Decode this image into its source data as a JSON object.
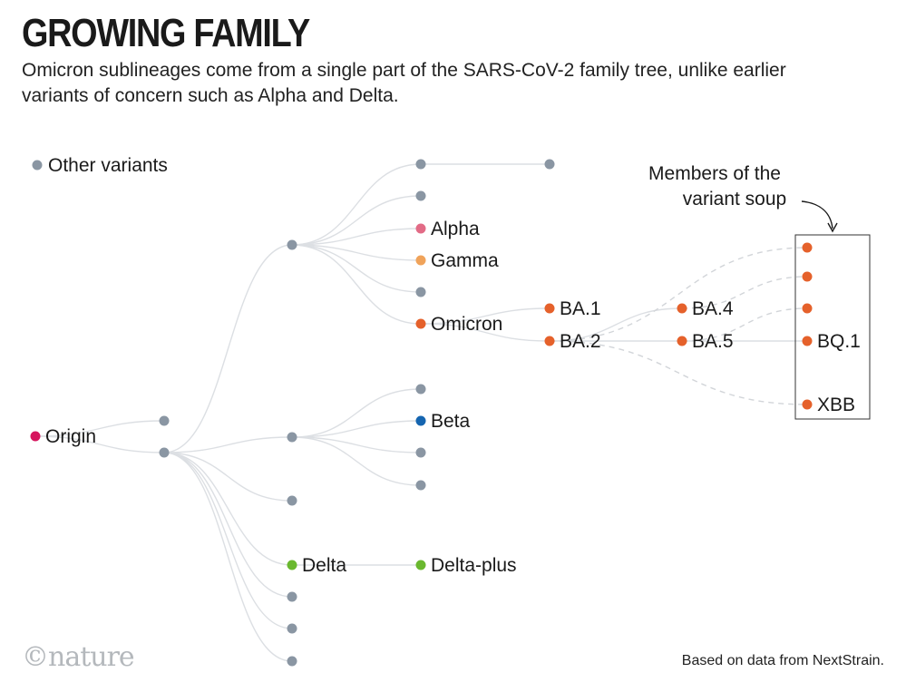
{
  "header": {
    "title": "GROWING FAMILY",
    "subtitle": "Omicron sublineages come from a single part of the SARS-CoV-2 family tree, unlike earlier variants of concern such as Alpha and Delta."
  },
  "legend": {
    "label": "Other variants",
    "color": "#8a96a3"
  },
  "annotation": {
    "line1": "Members of the",
    "line2": "variant soup"
  },
  "colors": {
    "other": "#8a96a3",
    "origin": "#d6155e",
    "alpha": "#e26b86",
    "gamma": "#f0a35a",
    "omicron": "#e5612b",
    "beta": "#1565b0",
    "delta": "#6ab82f",
    "edge": "#dcdfe3",
    "dashed": "#d2d5d9"
  },
  "nodes": [
    {
      "id": "origin",
      "label": "Origin",
      "color_key": "origin"
    },
    {
      "id": "n1",
      "label": "",
      "color_key": "other"
    },
    {
      "id": "n2",
      "label": "",
      "color_key": "other"
    },
    {
      "id": "n3",
      "label": "",
      "color_key": "other"
    },
    {
      "id": "n4",
      "label": "",
      "color_key": "other"
    },
    {
      "id": "n5",
      "label": "",
      "color_key": "other"
    },
    {
      "id": "delta",
      "label": "Delta",
      "color_key": "delta"
    },
    {
      "id": "n6",
      "label": "",
      "color_key": "other"
    },
    {
      "id": "n7",
      "label": "",
      "color_key": "other"
    },
    {
      "id": "n8",
      "label": "",
      "color_key": "other"
    },
    {
      "id": "n9",
      "label": "",
      "color_key": "other"
    },
    {
      "id": "n10",
      "label": "",
      "color_key": "other"
    },
    {
      "id": "alpha",
      "label": "Alpha",
      "color_key": "alpha"
    },
    {
      "id": "gamma",
      "label": "Gamma",
      "color_key": "gamma"
    },
    {
      "id": "n11",
      "label": "",
      "color_key": "other"
    },
    {
      "id": "omicron",
      "label": "Omicron",
      "color_key": "omicron"
    },
    {
      "id": "n12",
      "label": "",
      "color_key": "other"
    },
    {
      "id": "n13",
      "label": "",
      "color_key": "other"
    },
    {
      "id": "beta",
      "label": "Beta",
      "color_key": "beta"
    },
    {
      "id": "n14",
      "label": "",
      "color_key": "other"
    },
    {
      "id": "n15",
      "label": "",
      "color_key": "other"
    },
    {
      "id": "deltaplus",
      "label": "Delta-plus",
      "color_key": "delta"
    },
    {
      "id": "ba1",
      "label": "BA.1",
      "color_key": "omicron"
    },
    {
      "id": "ba2",
      "label": "BA.2",
      "color_key": "omicron"
    },
    {
      "id": "ba4",
      "label": "BA.4",
      "color_key": "omicron"
    },
    {
      "id": "ba5",
      "label": "BA.5",
      "color_key": "omicron"
    },
    {
      "id": "s1",
      "label": "",
      "color_key": "omicron"
    },
    {
      "id": "s2",
      "label": "",
      "color_key": "omicron"
    },
    {
      "id": "s3",
      "label": "",
      "color_key": "omicron"
    },
    {
      "id": "bq1",
      "label": "BQ.1",
      "color_key": "omicron"
    },
    {
      "id": "xbb",
      "label": "XBB",
      "color_key": "omicron"
    }
  ],
  "edges": [
    {
      "from": "origin",
      "to": "n1",
      "style": "solid"
    },
    {
      "from": "origin",
      "to": "n2",
      "style": "solid"
    },
    {
      "from": "n2",
      "to": "n3",
      "style": "solid"
    },
    {
      "from": "n2",
      "to": "n4",
      "style": "solid"
    },
    {
      "from": "n2",
      "to": "n5",
      "style": "solid"
    },
    {
      "from": "n2",
      "to": "delta",
      "style": "solid"
    },
    {
      "from": "n2",
      "to": "n6",
      "style": "solid"
    },
    {
      "from": "n2",
      "to": "n7",
      "style": "solid"
    },
    {
      "from": "n2",
      "to": "n8",
      "style": "solid"
    },
    {
      "from": "n3",
      "to": "n9",
      "style": "solid"
    },
    {
      "from": "n3",
      "to": "n10",
      "style": "solid"
    },
    {
      "from": "n3",
      "to": "alpha",
      "style": "solid"
    },
    {
      "from": "n3",
      "to": "gamma",
      "style": "solid"
    },
    {
      "from": "n3",
      "to": "n11",
      "style": "solid"
    },
    {
      "from": "n3",
      "to": "omicron",
      "style": "solid"
    },
    {
      "from": "n9",
      "to": "n12",
      "style": "solid"
    },
    {
      "from": "n4",
      "to": "n13",
      "style": "solid"
    },
    {
      "from": "n4",
      "to": "beta",
      "style": "solid"
    },
    {
      "from": "n4",
      "to": "n14",
      "style": "solid"
    },
    {
      "from": "n4",
      "to": "n15",
      "style": "solid"
    },
    {
      "from": "delta",
      "to": "deltaplus",
      "style": "solid"
    },
    {
      "from": "omicron",
      "to": "ba1",
      "style": "solid"
    },
    {
      "from": "omicron",
      "to": "ba2",
      "style": "solid"
    },
    {
      "from": "ba2",
      "to": "ba4",
      "style": "solid"
    },
    {
      "from": "ba2",
      "to": "ba5",
      "style": "solid"
    },
    {
      "from": "ba5",
      "to": "bq1",
      "style": "solid"
    },
    {
      "from": "ba2",
      "to": "s1",
      "style": "dashed"
    },
    {
      "from": "ba2",
      "to": "xbb",
      "style": "dashed"
    },
    {
      "from": "ba4",
      "to": "s2",
      "style": "dashed"
    },
    {
      "from": "ba5",
      "to": "s3",
      "style": "dashed"
    }
  ],
  "footer": {
    "logo": "©nature",
    "source": "Based on data from NextStrain."
  }
}
